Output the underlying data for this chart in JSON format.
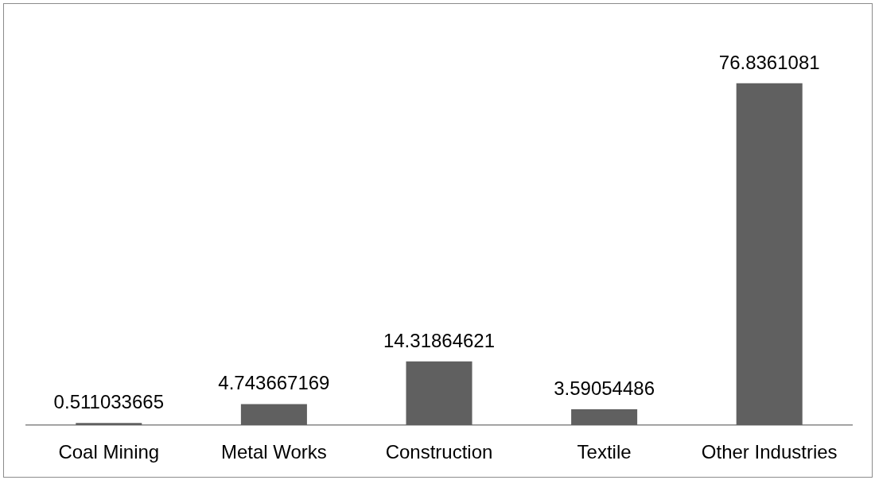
{
  "chart_data": {
    "type": "bar",
    "categories": [
      "Coal Mining",
      "Metal Works",
      "Construction",
      "Textile",
      "Other Industries"
    ],
    "values": [
      0.511033665,
      4.743667169,
      14.31864621,
      3.59054486,
      76.8361081
    ],
    "color": "#606060",
    "data_labels": true
  }
}
